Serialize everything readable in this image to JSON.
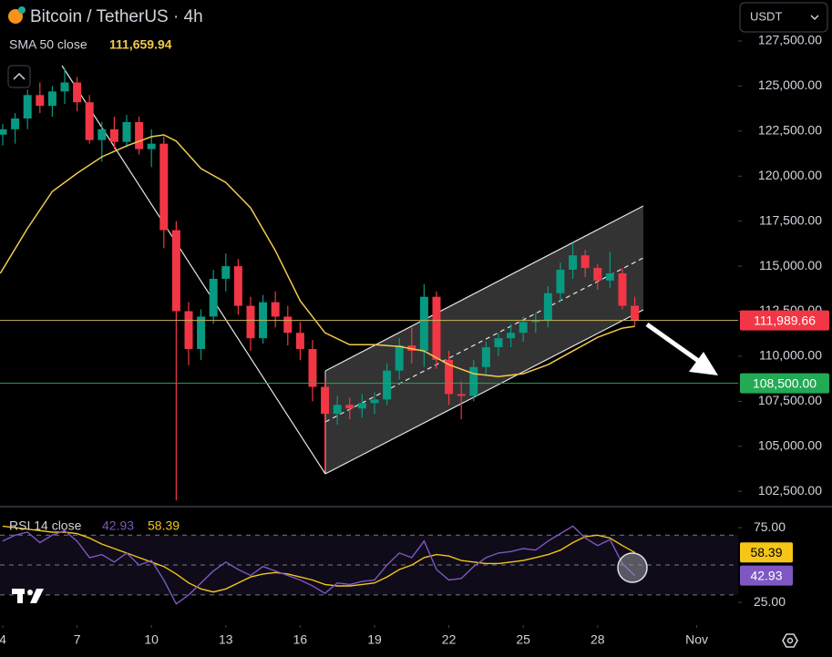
{
  "header": {
    "title": "Bitcoin / TetherUS · 4h",
    "currency": "USDT"
  },
  "chart_data": [
    {
      "type": "candlestick",
      "x": [
        4,
        4.5,
        5,
        5.5,
        6,
        6.5,
        7,
        7.5,
        8,
        8.5,
        9,
        9.5,
        10,
        10.5,
        11,
        11.5,
        12,
        12.5,
        13,
        13.5,
        14,
        14.5,
        15,
        15.5,
        16,
        16.5,
        17,
        17.5,
        18,
        18.5,
        19,
        19.5,
        20,
        20.5,
        21,
        21.5,
        22,
        22.5,
        23,
        23.5,
        24,
        24.5,
        25,
        25.5,
        26,
        26.5,
        27,
        27.5,
        28,
        28.5,
        29,
        29.5
      ],
      "open": [
        122300,
        122600,
        123200,
        124500,
        123900,
        124700,
        125200,
        124100,
        122000,
        122600,
        121900,
        123000,
        121500,
        121800,
        117000,
        112500,
        110400,
        112200,
        114300,
        115000,
        112800,
        111000,
        113000,
        112200,
        111300,
        110400,
        108300,
        106800,
        107300,
        107100,
        107400,
        107600,
        109200,
        110600,
        110300,
        113300,
        109800,
        107900,
        107800,
        109400,
        110500,
        111000,
        111300,
        111900,
        112000,
        113500,
        114800,
        115600,
        114900,
        114200,
        114600,
        112800
      ],
      "high": [
        122900,
        123500,
        124800,
        125200,
        125000,
        126000,
        125500,
        124500,
        123000,
        123300,
        123400,
        123300,
        122600,
        122200,
        117500,
        113000,
        112600,
        114800,
        115700,
        115400,
        113300,
        113400,
        113600,
        112800,
        111900,
        110900,
        108700,
        107800,
        107700,
        107900,
        108000,
        109600,
        111000,
        111600,
        114000,
        113600,
        110300,
        108600,
        109800,
        110800,
        111300,
        111800,
        112200,
        112400,
        113900,
        115200,
        116300,
        115900,
        115100,
        115800,
        114900,
        113300
      ],
      "low": [
        121700,
        121800,
        122600,
        123500,
        123300,
        124000,
        123600,
        121800,
        120800,
        121500,
        121600,
        121200,
        120500,
        116000,
        102000,
        109500,
        109800,
        111800,
        113600,
        112300,
        110300,
        110700,
        111600,
        110600,
        109800,
        107500,
        103600,
        106200,
        106500,
        106600,
        106800,
        107300,
        108700,
        109600,
        109400,
        109300,
        107300,
        106500,
        107500,
        109000,
        110000,
        110500,
        110800,
        111300,
        111600,
        113000,
        114300,
        114400,
        113700,
        113800,
        112600,
        111700
      ],
      "close": [
        122600,
        123200,
        124500,
        123900,
        124700,
        125200,
        124100,
        122000,
        122600,
        121900,
        123000,
        121500,
        121800,
        117000,
        112500,
        110400,
        112200,
        114300,
        115000,
        112800,
        111000,
        113000,
        112200,
        111300,
        110400,
        108300,
        106800,
        107300,
        107100,
        107400,
        107600,
        109200,
        110600,
        110300,
        113300,
        109800,
        107900,
        107800,
        109400,
        110500,
        111000,
        111300,
        111900,
        112000,
        113500,
        114800,
        115600,
        114900,
        114200,
        114600,
        112800,
        111989.66
      ],
      "up_color": "#089981",
      "down_color": "#f23645",
      "xlim": [
        3.89,
        33.67
      ],
      "ylim": [
        101700,
        129777
      ],
      "yticks": [
        {
          "value": 102500,
          "label": "102,500.00"
        },
        {
          "value": 105000,
          "label": "105,000.00"
        },
        {
          "value": 107500,
          "label": "107,500.00"
        },
        {
          "value": 110000,
          "label": "110,000.00"
        },
        {
          "value": 112500,
          "label": "112,500.00"
        },
        {
          "value": 115000,
          "label": "115,000.00"
        },
        {
          "value": 117500,
          "label": "117,500.00"
        },
        {
          "value": 120000,
          "label": "120,000.00"
        },
        {
          "value": 122500,
          "label": "122,500.00"
        },
        {
          "value": 125000,
          "label": "125,000.00"
        },
        {
          "value": 127500,
          "label": "127,500.00"
        }
      ],
      "overlay": {
        "name": "SMA 50 close",
        "color": "#f2c94c",
        "x": [
          3.9,
          5,
          6,
          7,
          8,
          9,
          10,
          10.5,
          11,
          12,
          13,
          14,
          15,
          16,
          17,
          18,
          19,
          20,
          21,
          22,
          23,
          24,
          25,
          26,
          27,
          28,
          29,
          29.5
        ],
        "values": [
          114600,
          117100,
          119150,
          120160,
          121070,
          121680,
          122190,
          122290,
          121940,
          120420,
          119650,
          118240,
          115860,
          113080,
          111300,
          110640,
          110640,
          110540,
          110290,
          109530,
          109030,
          108870,
          109030,
          109530,
          110290,
          111050,
          111560,
          111659.94
        ],
        "last_value_label": "111,659.94"
      },
      "price_lines": [
        {
          "value": 111989.66,
          "label": "111,989.66",
          "color": "#f23645",
          "line_color": "#c9b458"
        },
        {
          "value": 108500,
          "label": "108,500.00",
          "color": "#22ab54",
          "line_color": "#22ab54"
        }
      ]
    },
    {
      "type": "line",
      "title": "RSI 14 close",
      "x": [
        4,
        4.5,
        5,
        5.5,
        6,
        6.5,
        7,
        7.5,
        8,
        8.5,
        9,
        9.5,
        10,
        10.5,
        11,
        11.5,
        12,
        12.5,
        13,
        13.5,
        14,
        14.5,
        15,
        15.5,
        16,
        16.5,
        17,
        17.5,
        18,
        18.5,
        19,
        19.5,
        20,
        20.5,
        21,
        21.5,
        22,
        22.5,
        23,
        23.5,
        24,
        24.5,
        25,
        25.5,
        26,
        26.5,
        27,
        27.5,
        28,
        28.5,
        29,
        29.5
      ],
      "series": [
        {
          "color": "#7e57c2",
          "values": [
            66,
            70,
            72,
            65,
            70,
            73,
            66,
            55,
            57,
            52,
            58,
            50,
            53,
            40,
            24,
            30,
            38,
            46,
            52,
            47,
            43,
            49,
            46,
            43,
            40,
            36,
            31,
            38,
            37,
            39,
            40,
            50,
            58,
            55,
            66,
            47,
            40,
            41,
            49,
            55,
            58,
            59,
            61,
            60,
            66,
            71,
            76,
            68,
            63,
            67,
            51,
            42.93
          ]
        },
        {
          "color": "#f5c518",
          "values": [
            76,
            75,
            74,
            73,
            72,
            72,
            71,
            68,
            64,
            61,
            58,
            55,
            52,
            49,
            44,
            38,
            34,
            32,
            34,
            38,
            42,
            44,
            45,
            44,
            42,
            40,
            37,
            36,
            36,
            37,
            38,
            42,
            47,
            50,
            55,
            57,
            56,
            53,
            52,
            51,
            51,
            52,
            53,
            55,
            57,
            60,
            65,
            69,
            70,
            68,
            63,
            58.39
          ]
        }
      ],
      "bands": {
        "upper": 70,
        "middle": 50,
        "lower": 30
      },
      "xlim": [
        3.89,
        33.67
      ],
      "ylim": [
        10.4,
        85.4
      ],
      "yticks": [
        {
          "value": 25,
          "label": "25.00"
        },
        {
          "value": 75,
          "label": "75.00"
        }
      ],
      "xticks": [
        {
          "value": 4,
          "label": "4"
        },
        {
          "value": 7,
          "label": "7"
        },
        {
          "value": 10,
          "label": "10"
        },
        {
          "value": 13,
          "label": "13"
        },
        {
          "value": 16,
          "label": "16"
        },
        {
          "value": 19,
          "label": "19"
        },
        {
          "value": 22,
          "label": "22"
        },
        {
          "value": 25,
          "label": "25"
        },
        {
          "value": 28,
          "label": "28"
        },
        {
          "value": 32,
          "label": "Nov"
        }
      ]
    }
  ]
}
